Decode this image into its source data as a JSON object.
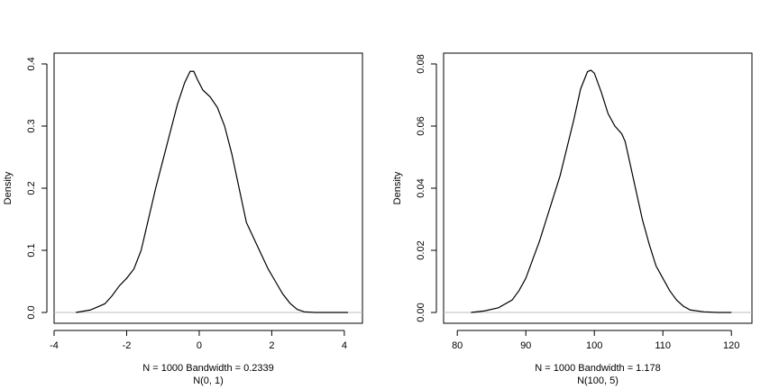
{
  "chart_data": [
    {
      "type": "line",
      "title": "",
      "xlabel": "N = 1000   Bandwidth = 0.2339",
      "sublabel": "N(0, 1)",
      "ylabel": "Density",
      "xlim": [
        -4,
        4.5
      ],
      "ylim": [
        0,
        0.4
      ],
      "xticks": [
        -4,
        -2,
        0,
        2,
        4
      ],
      "xtick_labels": [
        "-4",
        "-2",
        "0",
        "2",
        "4"
      ],
      "yticks": [
        0,
        0.1,
        0.2,
        0.3,
        0.4
      ],
      "ytick_labels": [
        "0.0",
        "0.1",
        "0.2",
        "0.3",
        "0.4"
      ],
      "grid": false,
      "baseline_color": "#bebebe",
      "line_color": "#000000",
      "series": [
        {
          "x": [
            -3.4,
            -3.0,
            -2.6,
            -2.4,
            -2.2,
            -2.0,
            -1.8,
            -1.6,
            -1.4,
            -1.2,
            -1.0,
            -0.8,
            -0.6,
            -0.4,
            -0.25,
            -0.15,
            -0.05,
            0.1,
            0.3,
            0.5,
            0.7,
            0.9,
            1.1,
            1.3,
            1.5,
            1.7,
            1.9,
            2.1,
            2.3,
            2.5,
            2.7,
            2.9,
            3.2,
            3.6,
            4.1
          ],
          "y": [
            0.0,
            0.004,
            0.014,
            0.027,
            0.043,
            0.055,
            0.07,
            0.1,
            0.15,
            0.2,
            0.245,
            0.29,
            0.335,
            0.37,
            0.388,
            0.388,
            0.375,
            0.358,
            0.347,
            0.33,
            0.3,
            0.255,
            0.2,
            0.145,
            0.12,
            0.095,
            0.07,
            0.05,
            0.03,
            0.015,
            0.005,
            0.001,
            0.0,
            0.0,
            0.0
          ]
        }
      ]
    },
    {
      "type": "line",
      "title": "",
      "xlabel": "N = 1000   Bandwidth = 1.178",
      "sublabel": "N(100, 5)",
      "ylabel": "Density",
      "xlim": [
        78,
        123
      ],
      "ylim": [
        0,
        0.08
      ],
      "xticks": [
        80,
        90,
        100,
        110,
        120
      ],
      "xtick_labels": [
        "80",
        "90",
        "100",
        "110",
        "120"
      ],
      "yticks": [
        0,
        0.02,
        0.04,
        0.06,
        0.08
      ],
      "ytick_labels": [
        "0.00",
        "0.02",
        "0.04",
        "0.06",
        "0.08"
      ],
      "grid": false,
      "baseline_color": "#bebebe",
      "line_color": "#000000",
      "series": [
        {
          "x": [
            82,
            84,
            86,
            88,
            89,
            90,
            91,
            92,
            93,
            94,
            95,
            96,
            97,
            98,
            99,
            99.5,
            100,
            101,
            102,
            103,
            104,
            104.5,
            105,
            106,
            107,
            108,
            109,
            110,
            111,
            112,
            113,
            114,
            116,
            118,
            120
          ],
          "y": [
            0.0,
            0.0005,
            0.0015,
            0.004,
            0.007,
            0.011,
            0.017,
            0.023,
            0.03,
            0.037,
            0.044,
            0.053,
            0.062,
            0.072,
            0.0775,
            0.078,
            0.077,
            0.071,
            0.064,
            0.06,
            0.0575,
            0.055,
            0.05,
            0.04,
            0.03,
            0.022,
            0.015,
            0.011,
            0.007,
            0.004,
            0.002,
            0.0008,
            0.0002,
            0.0,
            0.0
          ]
        }
      ]
    }
  ]
}
